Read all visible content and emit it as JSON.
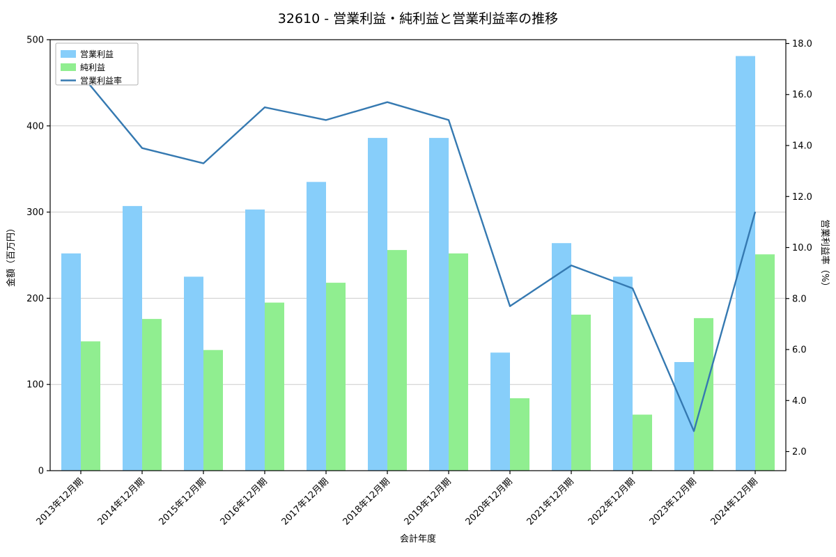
{
  "title": "32610 - 営業利益・純利益と営業利益率の推移",
  "chart_data": {
    "type": "bar+line",
    "title": "32610 - 営業利益・純利益と営業利益率の推移",
    "categories": [
      "2013年12月期",
      "2014年12月期",
      "2015年12月期",
      "2016年12月期",
      "2017年12月期",
      "2018年12月期",
      "2019年12月期",
      "2020年12月期",
      "2021年12月期",
      "2022年12月期",
      "2023年12月期",
      "2024年12月期"
    ],
    "series": [
      {
        "name": "営業利益",
        "type": "bar",
        "axis": "left",
        "color": "#87CEFA",
        "values": [
          252,
          307,
          225,
          303,
          335,
          386,
          386,
          137,
          264,
          225,
          126,
          481
        ]
      },
      {
        "name": "純利益",
        "type": "bar",
        "axis": "left",
        "color": "#90EE90",
        "values": [
          150,
          176,
          140,
          195,
          218,
          256,
          252,
          84,
          181,
          65,
          177,
          251
        ]
      },
      {
        "name": "営業利益率",
        "type": "line",
        "axis": "right",
        "color": "#3579b1",
        "values": [
          16.8,
          13.9,
          13.3,
          15.5,
          15.0,
          15.7,
          15.0,
          7.7,
          9.3,
          8.4,
          2.8,
          11.4
        ]
      }
    ],
    "xlabel": "会計年度",
    "ylabel": "金額（百万円）",
    "y2label": "営業利益率（%）",
    "ylim": [
      0,
      500
    ],
    "y2lim": [
      1.25,
      18.15
    ],
    "yticks": [
      0,
      100,
      200,
      300,
      400,
      500
    ],
    "y2ticks": [
      2.0,
      4.0,
      6.0,
      8.0,
      10.0,
      12.0,
      14.0,
      16.0,
      18.0
    ],
    "grid": true,
    "legend_position": "upper-left",
    "colors": {
      "grid": "#cccccc",
      "axis": "#000000",
      "text": "#000000"
    }
  }
}
